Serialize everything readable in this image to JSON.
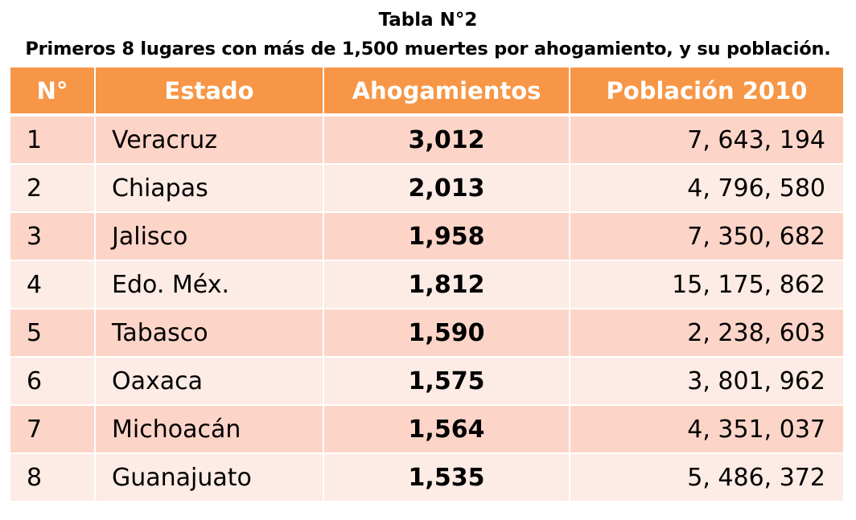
{
  "caption": {
    "title": "Tabla N°2",
    "subtitle": "Primeros 8 lugares con más de 1,500 muertes por ahogamiento, y su población."
  },
  "table": {
    "headers": [
      "N°",
      "Estado",
      "Ahogamientos",
      "Población 2010"
    ],
    "rows": [
      {
        "n": "1",
        "estado": "Veracruz",
        "ahogamientos": "3,012",
        "poblacion": "7, 643, 194"
      },
      {
        "n": "2",
        "estado": "Chiapas",
        "ahogamientos": "2,013",
        "poblacion": "4, 796, 580"
      },
      {
        "n": "3",
        "estado": "Jalisco",
        "ahogamientos": "1,958",
        "poblacion": "7, 350, 682"
      },
      {
        "n": "4",
        "estado": "Edo. Méx.",
        "ahogamientos": "1,812",
        "poblacion": "15, 175, 862"
      },
      {
        "n": "5",
        "estado": "Tabasco",
        "ahogamientos": "1,590",
        "poblacion": "2, 238, 603"
      },
      {
        "n": "6",
        "estado": "Oaxaca",
        "ahogamientos": "1,575",
        "poblacion": "3, 801, 962"
      },
      {
        "n": "7",
        "estado": "Michoacán",
        "ahogamientos": "1,564",
        "poblacion": "4, 351, 037"
      },
      {
        "n": "8",
        "estado": "Guanajuato",
        "ahogamientos": "1,535",
        "poblacion": "5, 486, 372"
      }
    ]
  },
  "colors": {
    "header_bg": "#f79646",
    "row_odd_bg": "#fcd5c8",
    "row_even_bg": "#fdebe5"
  }
}
